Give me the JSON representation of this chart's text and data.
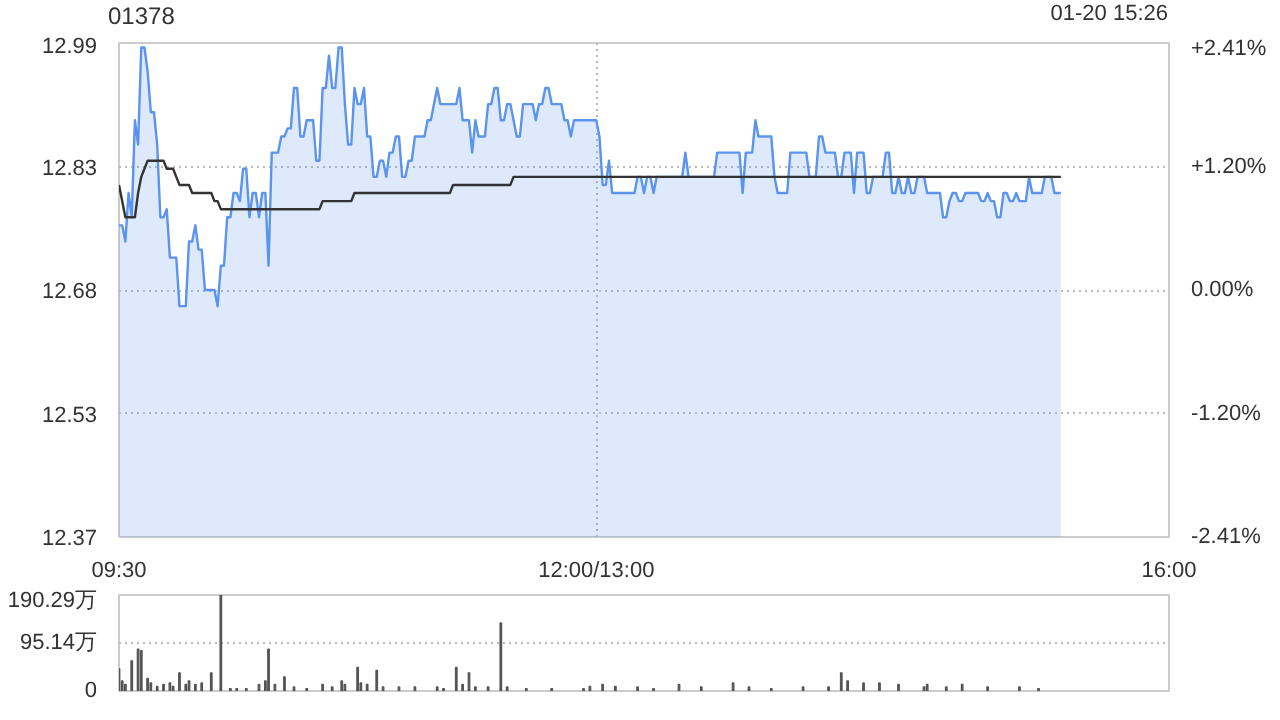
{
  "chart_data": [
    {
      "type": "area",
      "title": "01378",
      "annotations": [
        "01-20 15:26"
      ],
      "categories": [
        "09:30",
        null,
        null,
        null,
        null,
        null,
        null,
        null,
        null,
        null,
        null,
        null,
        null,
        null,
        null,
        null,
        null,
        null,
        null,
        null,
        null,
        null,
        null,
        null,
        null,
        null,
        null,
        null,
        null,
        null,
        null,
        null,
        null,
        null,
        null,
        null,
        null,
        null,
        null,
        null,
        null,
        null,
        null,
        null,
        null,
        null,
        null,
        null,
        null,
        null,
        null,
        null,
        null,
        null,
        null,
        null,
        null,
        null,
        null,
        null,
        null,
        null,
        null,
        null,
        null,
        null,
        null,
        null,
        null,
        null,
        null,
        null,
        null,
        null,
        null,
        null,
        null,
        null,
        null,
        null,
        null,
        null,
        null,
        null,
        null,
        null,
        null,
        null,
        null,
        null,
        null,
        null,
        null,
        null,
        null,
        null,
        null,
        null,
        null,
        null,
        null,
        null,
        null,
        null,
        null,
        null,
        null,
        null,
        null,
        null,
        null,
        null,
        null,
        null,
        null,
        null,
        null,
        null,
        null,
        null,
        null,
        null,
        null,
        null,
        null,
        null,
        null,
        null,
        null,
        null,
        null,
        null,
        null,
        null,
        null,
        null,
        null,
        null,
        null,
        null,
        null,
        null,
        null,
        null,
        null,
        null,
        null,
        null,
        null,
        null,
        "12:00/13:00",
        null,
        null,
        null,
        null,
        null,
        null,
        null,
        null,
        null,
        null,
        null,
        null,
        null,
        null,
        null,
        null,
        null,
        null,
        null,
        null,
        null,
        null,
        null,
        null,
        null,
        null,
        null,
        null,
        null,
        null,
        null,
        null,
        null,
        null,
        null,
        null,
        null,
        null,
        null,
        null,
        null,
        null,
        null,
        null,
        null,
        null,
        null,
        null,
        null,
        null,
        null,
        null,
        null,
        null,
        null,
        null,
        null,
        null,
        null,
        null,
        null,
        null,
        null,
        null,
        null,
        null,
        null,
        null,
        null,
        null,
        null,
        null,
        null,
        null,
        null,
        null,
        null,
        null,
        null,
        null,
        null,
        null,
        null,
        null,
        null,
        null,
        null,
        null,
        null,
        null,
        null,
        null,
        null,
        null,
        null,
        null,
        null,
        null,
        null,
        null,
        null,
        null,
        null,
        null,
        null,
        null,
        null,
        null,
        null,
        null,
        null,
        null,
        null,
        null,
        null,
        null,
        null,
        null,
        null,
        null,
        null,
        null,
        null,
        null,
        null,
        null,
        null,
        null,
        null,
        null,
        null,
        null,
        null,
        null,
        null,
        null,
        null,
        null,
        null,
        null,
        null,
        null,
        null,
        null,
        null,
        null,
        null,
        null,
        null,
        null,
        null,
        null,
        null,
        null,
        null,
        null,
        null,
        null,
        null,
        null,
        null,
        null,
        null,
        null,
        null,
        null,
        null,
        null,
        null,
        null,
        null,
        null,
        null,
        null,
        null,
        null,
        null,
        null,
        null,
        "16:00"
      ],
      "ylim": [
        12.3744,
        12.9856
      ],
      "yticks": [
        {
          "value": 12.3744,
          "label": "12.37"
        },
        {
          "value": 12.5272,
          "label": "12.53"
        },
        {
          "value": 12.68,
          "label": "12.68"
        },
        {
          "value": 12.8328,
          "label": "12.83"
        },
        {
          "value": 12.9856,
          "label": "12.99"
        }
      ],
      "y2lim": [
        -2.41,
        2.41
      ],
      "y2ticks": [
        {
          "value": -2.41,
          "label": "-2.41%"
        },
        {
          "value": -1.205,
          "label": "-1.20%"
        },
        {
          "value": 0,
          "label": "0.00%"
        },
        {
          "value": 1.205,
          "label": "+1.20%"
        },
        {
          "value": 2.41,
          "label": "+2.41%"
        }
      ],
      "grid": true,
      "series": [
        {
          "type": "area",
          "color": "#5b94ef",
          "values": [
            12.76,
            12.76,
            12.74,
            12.8,
            12.77,
            12.89,
            12.86,
            12.98,
            12.98,
            12.95,
            12.9,
            12.9,
            12.86,
            12.77,
            12.77,
            12.78,
            12.72,
            12.72,
            12.72,
            12.66,
            12.66,
            12.66,
            12.74,
            12.74,
            12.76,
            12.73,
            12.73,
            12.68,
            12.68,
            12.68,
            12.68,
            12.66,
            12.71,
            12.71,
            12.77,
            12.77,
            12.8,
            12.8,
            12.79,
            12.83,
            12.83,
            12.77,
            12.8,
            12.8,
            12.77,
            12.8,
            12.8,
            12.71,
            12.85,
            12.85,
            12.85,
            12.87,
            12.87,
            12.88,
            12.88,
            12.93,
            12.93,
            12.87,
            12.87,
            12.89,
            12.89,
            12.89,
            12.84,
            12.84,
            12.93,
            12.93,
            12.97,
            12.93,
            12.93,
            12.98,
            12.98,
            12.91,
            12.86,
            12.86,
            12.93,
            12.91,
            12.91,
            12.93,
            12.87,
            12.87,
            12.82,
            12.82,
            12.84,
            12.84,
            12.82,
            12.85,
            12.85,
            12.87,
            12.87,
            12.82,
            12.82,
            12.84,
            12.84,
            12.87,
            12.87,
            12.87,
            12.87,
            12.89,
            12.89,
            12.91,
            12.93,
            12.91,
            12.91,
            12.91,
            12.91,
            12.91,
            12.91,
            12.93,
            12.89,
            12.89,
            12.89,
            12.85,
            12.89,
            12.87,
            12.87,
            12.87,
            12.91,
            12.91,
            12.93,
            12.93,
            12.89,
            12.89,
            12.91,
            12.91,
            12.89,
            12.87,
            12.87,
            12.91,
            12.91,
            12.91,
            12.91,
            12.89,
            12.91,
            12.91,
            12.93,
            12.93,
            12.91,
            12.91,
            12.91,
            12.91,
            12.89,
            12.89,
            12.87,
            12.89,
            12.89,
            12.89,
            12.89,
            12.89,
            12.89,
            12.89,
            12.89,
            12.87,
            12.81,
            12.81,
            12.84,
            12.8,
            12.8,
            12.8,
            12.8,
            12.8,
            12.8,
            12.8,
            12.8,
            12.82,
            12.82,
            12.8,
            12.82,
            12.82,
            12.8,
            12.82,
            12.82,
            12.82,
            12.82,
            12.82,
            12.82,
            12.82,
            12.82,
            12.82,
            12.85,
            12.82,
            12.82,
            12.82,
            12.82,
            12.82,
            12.82,
            12.82,
            12.82,
            12.82,
            12.85,
            12.85,
            12.85,
            12.85,
            12.85,
            12.85,
            12.85,
            12.85,
            12.8,
            12.85,
            12.85,
            12.85,
            12.89,
            12.87,
            12.87,
            12.87,
            12.87,
            12.87,
            12.82,
            12.8,
            12.8,
            12.8,
            12.8,
            12.85,
            12.85,
            12.85,
            12.85,
            12.85,
            12.85,
            12.82,
            12.82,
            12.82,
            12.87,
            12.87,
            12.85,
            12.85,
            12.85,
            12.85,
            12.82,
            12.82,
            12.85,
            12.85,
            12.85,
            12.8,
            12.85,
            12.85,
            12.85,
            12.8,
            12.8,
            12.82,
            12.82,
            12.82,
            12.82,
            12.85,
            12.85,
            12.8,
            12.8,
            12.82,
            12.8,
            12.8,
            12.82,
            12.8,
            12.8,
            12.82,
            12.82,
            12.82,
            12.8,
            12.8,
            12.8,
            12.8,
            12.8,
            12.77,
            12.77,
            12.79,
            12.8,
            12.8,
            12.79,
            12.79,
            12.8,
            12.8,
            12.8,
            12.8,
            12.8,
            12.79,
            12.79,
            12.8,
            12.79,
            12.79,
            12.77,
            12.77,
            12.8,
            12.8,
            12.79,
            12.79,
            12.8,
            12.79,
            12.79,
            12.79,
            12.82,
            12.8,
            12.8,
            12.8,
            12.8,
            12.82,
            12.82,
            12.82,
            12.8,
            12.8,
            12.8,
            null,
            null,
            null,
            null,
            null,
            null,
            null,
            null,
            null,
            null,
            null,
            null,
            null,
            null,
            null,
            null,
            null,
            null,
            null,
            null,
            null,
            null,
            null,
            null,
            null,
            null,
            null,
            null,
            null,
            null,
            null,
            null,
            null,
            null
          ]
        },
        {
          "type": "line",
          "color": "#333333",
          "values": [
            12.81,
            12.79,
            12.77,
            12.77,
            12.77,
            12.77,
            12.8,
            12.82,
            12.83,
            12.84,
            12.84,
            12.84,
            12.84,
            12.84,
            12.84,
            12.83,
            12.83,
            12.83,
            12.82,
            12.81,
            12.81,
            12.81,
            12.81,
            12.8,
            12.8,
            12.8,
            12.8,
            12.8,
            12.8,
            12.8,
            12.79,
            12.79,
            12.78,
            12.78,
            12.78,
            12.78,
            12.78,
            12.78,
            12.78,
            12.78,
            12.78,
            12.78,
            12.78,
            12.78,
            12.78,
            12.78,
            12.78,
            12.78,
            12.78,
            12.78,
            12.78,
            12.78,
            12.78,
            12.78,
            12.78,
            12.78,
            12.78,
            12.78,
            12.78,
            12.78,
            12.78,
            12.78,
            12.78,
            12.78,
            12.79,
            12.79,
            12.79,
            12.79,
            12.79,
            12.79,
            12.79,
            12.79,
            12.79,
            12.79,
            12.8,
            12.8,
            12.8,
            12.8,
            12.8,
            12.8,
            12.8,
            12.8,
            12.8,
            12.8,
            12.8,
            12.8,
            12.8,
            12.8,
            12.8,
            12.8,
            12.8,
            12.8,
            12.8,
            12.8,
            12.8,
            12.8,
            12.8,
            12.8,
            12.8,
            12.8,
            12.8,
            12.8,
            12.8,
            12.8,
            12.8,
            12.81,
            12.81,
            12.81,
            12.81,
            12.81,
            12.81,
            12.81,
            12.81,
            12.81,
            12.81,
            12.81,
            12.81,
            12.81,
            12.81,
            12.81,
            12.81,
            12.81,
            12.81,
            12.81,
            12.82,
            12.82,
            12.82,
            12.82,
            12.82,
            12.82,
            12.82,
            12.82,
            12.82,
            12.82,
            12.82,
            12.82,
            12.82,
            12.82,
            12.82,
            12.82,
            12.82,
            12.82,
            12.82,
            12.82,
            12.82,
            12.82,
            12.82,
            12.82,
            12.82,
            12.82,
            12.82,
            12.82,
            12.82,
            12.82,
            12.82,
            12.82,
            12.82,
            12.82,
            12.82,
            12.82,
            12.82,
            12.82,
            12.82,
            12.82,
            12.82,
            12.82,
            12.82,
            12.82,
            12.82,
            12.82,
            12.82,
            12.82,
            12.82,
            12.82,
            12.82,
            12.82,
            12.82,
            12.82,
            12.82,
            12.82,
            12.82,
            12.82,
            12.82,
            12.82,
            12.82,
            12.82,
            12.82,
            12.82,
            12.82,
            12.82,
            12.82,
            12.82,
            12.82,
            12.82,
            12.82,
            12.82,
            12.82,
            12.82,
            12.82,
            12.82,
            12.82,
            12.82,
            12.82,
            12.82,
            12.82,
            12.82,
            12.82,
            12.82,
            12.82,
            12.82,
            12.82,
            12.82,
            12.82,
            12.82,
            12.82,
            12.82,
            12.82,
            12.82,
            12.82,
            12.82,
            12.82,
            12.82,
            12.82,
            12.82,
            12.82,
            12.82,
            12.82,
            12.82,
            12.82,
            12.82,
            12.82,
            12.82,
            12.82,
            12.82,
            12.82,
            12.82,
            12.82,
            12.82,
            12.82,
            12.82,
            12.82,
            12.82,
            12.82,
            12.82,
            12.82,
            12.82,
            12.82,
            12.82,
            12.82,
            12.82,
            12.82,
            12.82,
            12.82,
            12.82,
            12.82,
            12.82,
            12.82,
            12.82,
            12.82,
            12.82,
            12.82,
            12.82,
            12.82,
            12.82,
            12.82,
            12.82,
            12.82,
            12.82,
            12.82,
            12.82,
            12.82,
            12.82,
            12.82,
            12.82,
            12.82,
            12.82,
            12.82,
            12.82,
            12.82,
            12.82,
            12.82,
            12.82,
            12.82,
            12.82,
            12.82,
            12.82,
            12.82,
            12.82,
            12.82,
            12.82,
            12.82,
            12.82,
            12.82,
            12.82,
            12.82,
            12.82,
            12.82,
            null,
            null,
            null,
            null,
            null,
            null,
            null,
            null,
            null,
            null,
            null,
            null,
            null,
            null,
            null,
            null,
            null,
            null,
            null,
            null,
            null,
            null,
            null,
            null,
            null,
            null,
            null,
            null,
            null,
            null,
            null,
            null,
            null,
            null
          ]
        }
      ]
    },
    {
      "type": "bar",
      "tick_labels": "y",
      "categories": [
        null,
        null,
        null,
        null,
        null,
        null,
        null,
        null,
        null,
        null,
        null,
        null,
        null,
        null,
        null,
        null,
        null,
        null,
        null,
        null,
        null,
        null,
        null,
        null,
        null,
        null,
        null,
        null,
        null,
        null,
        null,
        null,
        null,
        null,
        null,
        null,
        null,
        null,
        null,
        null,
        null,
        null,
        null,
        null,
        null,
        null,
        null,
        null,
        null,
        null,
        null,
        null,
        null,
        null,
        null,
        null,
        null,
        null,
        null,
        null,
        null,
        null,
        null,
        null,
        null,
        null,
        null,
        null,
        null,
        null,
        null,
        null,
        null,
        null,
        null,
        null,
        null,
        null,
        null,
        null,
        null,
        null,
        null,
        null,
        null,
        null,
        null,
        null,
        null,
        null,
        null,
        null,
        null,
        null,
        null,
        null,
        null,
        null,
        null,
        null,
        null,
        null,
        null,
        null,
        null,
        null,
        null,
        null,
        null,
        null,
        null,
        null,
        null,
        null,
        null,
        null,
        null,
        null,
        null,
        null,
        null,
        null,
        null,
        null,
        null,
        null,
        null,
        null,
        null,
        null,
        null,
        null,
        null,
        null,
        null,
        null,
        null,
        null,
        null,
        null,
        null,
        null,
        null,
        null,
        null,
        null,
        null,
        null,
        null,
        null,
        null,
        null,
        null,
        null,
        null,
        null,
        null,
        null,
        null,
        null,
        null,
        null,
        null,
        null,
        null,
        null,
        null,
        null,
        null,
        null,
        null,
        null,
        null,
        null,
        null,
        null,
        null,
        null,
        null,
        null,
        null,
        null,
        null,
        null,
        null,
        null,
        null,
        null,
        null,
        null,
        null,
        null,
        null,
        null,
        null,
        null,
        null,
        null,
        null,
        null,
        null,
        null,
        null,
        null,
        null,
        null,
        null,
        null,
        null,
        null,
        null,
        null,
        null,
        null,
        null,
        null,
        null,
        null,
        null,
        null,
        null,
        null,
        null,
        null,
        null,
        null,
        null,
        null,
        null,
        null,
        null,
        null,
        null,
        null,
        null,
        null,
        null,
        null,
        null,
        null,
        null,
        null,
        null,
        null,
        null,
        null,
        null,
        null,
        null,
        null,
        null,
        null,
        null,
        null,
        null,
        null,
        null,
        null,
        null,
        null,
        null,
        null,
        null,
        null,
        null,
        null,
        null,
        null,
        null,
        null,
        null,
        null,
        null,
        null,
        null,
        null,
        null,
        null,
        null,
        null,
        null,
        null,
        null,
        null,
        null,
        null,
        null,
        null,
        null,
        null,
        null,
        null,
        null,
        null,
        null,
        null,
        null,
        null,
        null,
        null,
        null,
        null,
        null,
        null,
        null,
        null,
        null,
        null,
        null,
        null,
        null,
        null,
        null,
        null,
        null,
        null,
        null,
        null,
        null,
        null,
        null,
        null,
        null,
        null,
        null,
        null,
        null,
        null,
        null,
        null,
        null
      ],
      "ylim": [
        0,
        190.29
      ],
      "yticks": [
        0,
        {
          "value": 95.14,
          "label": "95.14万"
        },
        {
          "value": 190.29,
          "label": "190.29万"
        }
      ],
      "grid": "y",
      "series": [
        {
          "color": "#555555",
          "values": [
            44,
            20,
            13,
            null,
            60,
            null,
            83,
            80,
            null,
            25,
            16,
            null,
            9,
            null,
            13,
            null,
            16,
            9,
            null,
            36,
            null,
            13,
            20,
            null,
            13,
            null,
            16,
            null,
            null,
            36,
            null,
            null,
            190,
            null,
            null,
            5,
            null,
            5,
            null,
            null,
            5,
            null,
            null,
            null,
            13,
            null,
            20,
            83,
            null,
            13,
            null,
            null,
            28,
            null,
            null,
            8,
            null,
            null,
            null,
            5,
            null,
            null,
            null,
            null,
            13,
            null,
            null,
            8,
            null,
            null,
            20,
            13,
            null,
            null,
            null,
            47,
            16,
            null,
            13,
            null,
            null,
            41,
            null,
            8,
            null,
            null,
            null,
            null,
            8,
            null,
            null,
            null,
            null,
            8,
            null,
            null,
            null,
            null,
            null,
            null,
            8,
            null,
            5,
            null,
            null,
            null,
            47,
            null,
            13,
            null,
            36,
            null,
            8,
            null,
            null,
            null,
            8,
            null,
            null,
            null,
            135,
            null,
            8,
            null,
            null,
            null,
            null,
            null,
            5,
            null,
            null,
            null,
            null,
            null,
            null,
            null,
            5,
            null,
            null,
            null,
            null,
            null,
            null,
            null,
            null,
            null,
            5,
            null,
            9,
            null,
            null,
            null,
            13,
            null,
            null,
            null,
            9,
            null,
            null,
            null,
            null,
            null,
            null,
            8,
            null,
            null,
            null,
            null,
            5,
            null,
            null,
            null,
            null,
            null,
            null,
            null,
            13,
            null,
            null,
            null,
            null,
            null,
            null,
            8,
            null,
            null,
            null,
            null,
            null,
            null,
            null,
            null,
            null,
            16,
            null,
            null,
            null,
            null,
            8,
            null,
            null,
            null,
            null,
            null,
            null,
            5,
            null,
            null,
            null,
            null,
            null,
            null,
            null,
            null,
            null,
            8,
            null,
            null,
            null,
            null,
            null,
            null,
            null,
            8,
            null,
            null,
            null,
            36,
            null,
            20,
            null,
            null,
            null,
            null,
            16,
            null,
            null,
            null,
            null,
            16,
            null,
            null,
            null,
            null,
            null,
            13,
            null,
            null,
            null,
            null,
            null,
            null,
            null,
            8,
            13,
            null,
            null,
            null,
            null,
            null,
            8,
            null,
            null,
            null,
            null,
            13,
            null,
            null,
            null,
            null,
            null,
            null,
            null,
            8,
            null,
            null,
            null,
            null,
            null,
            null,
            null,
            null,
            null,
            8,
            null,
            null,
            null,
            null,
            null,
            5,
            null,
            null,
            null,
            null,
            null,
            null,
            null,
            null,
            null,
            null,
            null,
            null,
            null,
            null,
            null,
            null,
            null,
            null,
            null,
            null,
            null,
            null,
            null,
            null,
            null,
            null,
            null,
            null,
            null,
            null,
            null,
            null,
            null,
            null,
            null,
            null,
            null,
            null,
            null,
            null,
            null
          ]
        }
      ]
    }
  ]
}
